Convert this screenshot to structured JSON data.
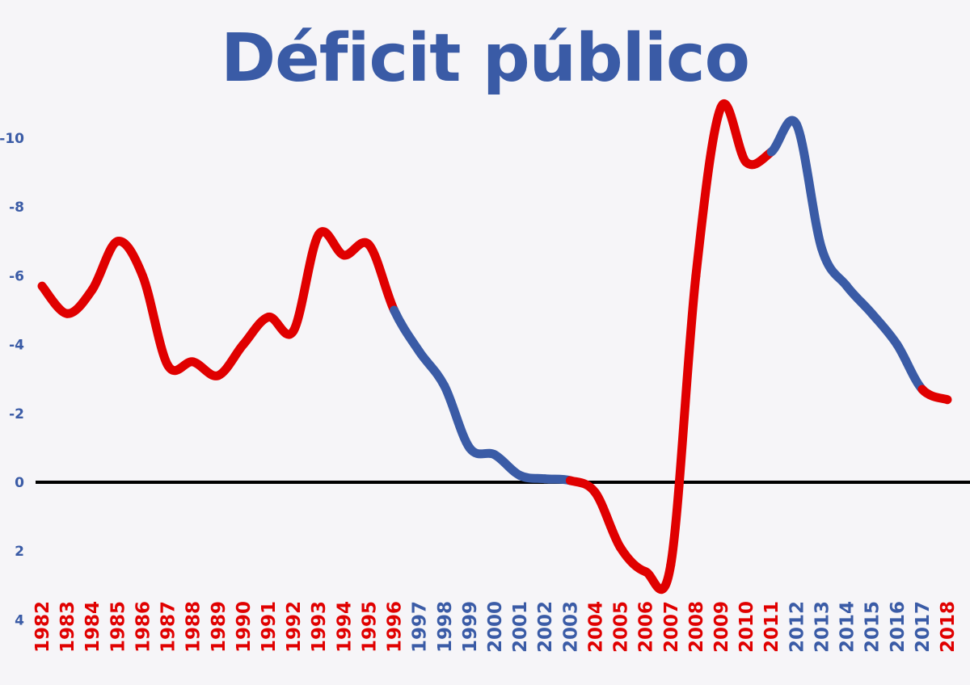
{
  "chart_data": {
    "type": "line",
    "title": "Déficit público",
    "xlabel": "",
    "ylabel": "",
    "x": [
      "1982",
      "1983",
      "1984",
      "1985",
      "1986",
      "1987",
      "1988",
      "1989",
      "1990",
      "1991",
      "1992",
      "1993",
      "1994",
      "1995",
      "1996",
      "1997",
      "1998",
      "1999",
      "2000",
      "2001",
      "2002",
      "2003",
      "2004",
      "2005",
      "2006",
      "2007",
      "2008",
      "2009",
      "2010",
      "2011",
      "2012",
      "2013",
      "2014",
      "2015",
      "2016",
      "2017",
      "2018"
    ],
    "values": [
      -5.7,
      -4.9,
      -5.6,
      -7.0,
      -6.0,
      -3.4,
      -3.5,
      -3.1,
      -4.0,
      -4.8,
      -4.4,
      -7.2,
      -6.6,
      -6.9,
      -5.0,
      -3.8,
      -2.8,
      -1.0,
      -0.8,
      -0.2,
      -0.1,
      -0.05,
      0.3,
      1.9,
      2.6,
      2.4,
      -6.0,
      -10.9,
      -9.3,
      -9.6,
      -10.4,
      -6.8,
      -5.7,
      -4.9,
      -4.0,
      -2.7,
      -2.4
    ],
    "segment_colors": [
      "red",
      "red",
      "red",
      "red",
      "red",
      "red",
      "red",
      "red",
      "red",
      "red",
      "red",
      "red",
      "red",
      "red",
      "red",
      "blue",
      "blue",
      "blue",
      "blue",
      "blue",
      "blue",
      "blue",
      "red",
      "red",
      "red",
      "red",
      "red",
      "red",
      "red",
      "red",
      "blue",
      "blue",
      "blue",
      "blue",
      "blue",
      "blue",
      "red"
    ],
    "colors": {
      "red": "#e00000",
      "blue": "#3a5ba6",
      "zero_line": "#000000",
      "ytick": "#3a5ba6"
    },
    "yticks": [
      {
        "value": -10,
        "label": "-10"
      },
      {
        "value": -8,
        "label": "-8"
      },
      {
        "value": -6,
        "label": "-6"
      },
      {
        "value": -4,
        "label": "-4"
      },
      {
        "value": -2,
        "label": "-2"
      },
      {
        "value": 0,
        "label": "0"
      },
      {
        "value": 2,
        "label": "2"
      },
      {
        "value": 4,
        "label": "4"
      }
    ],
    "ylim": [
      4,
      -11
    ],
    "y_inverted": true,
    "zero_line": true,
    "grid": false,
    "legend": "none"
  }
}
